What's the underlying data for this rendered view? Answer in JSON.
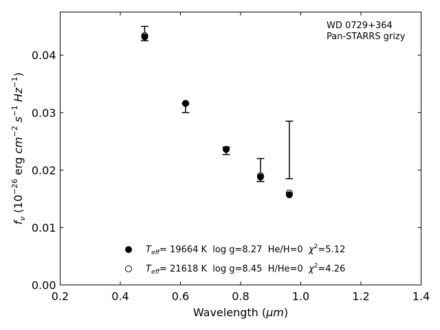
{
  "chart_data": {
    "type": "scatter",
    "xlabel_main": "Wavelength (",
    "xlabel_unit": "μm",
    "xlabel_close": ")",
    "ylabel": {
      "f": "f",
      "sub": "ν",
      "open": " (10",
      "exp1": "−26",
      "mid1": " erg ",
      "cm": "cm",
      "exp2": "−2",
      "s": "s",
      "exp3": "−1",
      "hz": "Hz",
      "exp4": "−1",
      "close": ")"
    },
    "xlim": [
      0.2,
      1.4
    ],
    "ylim": [
      0.0,
      0.0475
    ],
    "xticks": [
      "0.2",
      "0.4",
      "0.6",
      "0.8",
      "1.0",
      "1.2",
      "1.4"
    ],
    "xtick_values": [
      0.2,
      0.4,
      0.6,
      0.8,
      1.0,
      1.2,
      1.4
    ],
    "yticks": [
      "0.00",
      "0.01",
      "0.02",
      "0.03",
      "0.04"
    ],
    "ytick_values": [
      0.0,
      0.01,
      0.02,
      0.03,
      0.04
    ],
    "annotation": [
      "WD 0729+364",
      "Pan-STARRS grizy"
    ],
    "observed": {
      "x": [
        0.481,
        0.617,
        0.752,
        0.866,
        0.962
      ],
      "y": [
        0.0437,
        0.0309,
        0.0233,
        0.02,
        0.0235
      ],
      "yerr_low": [
        0.0012,
        0.0009,
        0.0006,
        0.002,
        0.005
      ],
      "yerr_high": [
        0.0013,
        0.0007,
        0.0007,
        0.002,
        0.005
      ]
    },
    "series": [
      {
        "filled": true,
        "teff_label": "T",
        "teff_sub": "eff",
        "text": "= 19664 K  log g=8.27  He/H=0  ",
        "chi_label": "χ",
        "chi_sup": "2",
        "chi_value": "=5.12",
        "x": [
          0.481,
          0.617,
          0.752,
          0.866,
          0.962
        ],
        "y": [
          0.0432,
          0.0316,
          0.0236,
          0.0188,
          0.0157
        ]
      },
      {
        "filled": false,
        "teff_label": "T",
        "teff_sub": "eff",
        "text": "= 21618 K  log g=8.45  H/He=0  ",
        "chi_label": "χ",
        "chi_sup": "2",
        "chi_value": "=4.26",
        "x": [
          0.481,
          0.617,
          0.752,
          0.866,
          0.962
        ],
        "y": [
          0.0434,
          0.0316,
          0.0236,
          0.019,
          0.016
        ]
      }
    ],
    "colors": {
      "marker": "#000000",
      "axes": "#000000",
      "background": "#ffffff"
    }
  }
}
